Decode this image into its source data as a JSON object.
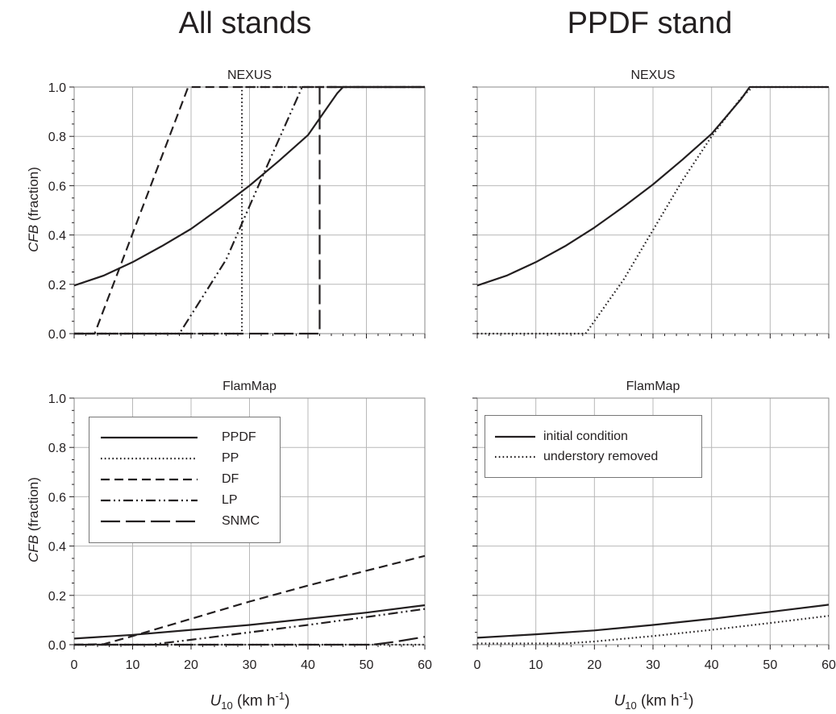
{
  "column_titles": {
    "left": "All stands",
    "right": "PPDF stand"
  },
  "y_axis_label": {
    "italic": "CFB",
    "rest": " (fraction)"
  },
  "x_axis_label": {
    "main": "U",
    "sub": "10",
    "unit_open": " (km h",
    "sup": "-1",
    "unit_close": ")"
  },
  "chart_data": [
    {
      "type": "line",
      "panel": "top-left",
      "title": "NEXUS",
      "xlabel": "",
      "ylabel": "CFB (fraction)",
      "xlim": [
        0,
        60
      ],
      "ylim": [
        0,
        1
      ],
      "xticks": [
        0,
        10,
        20,
        30,
        40,
        50,
        60
      ],
      "yticks": [
        "0.0",
        "0.2",
        "0.4",
        "0.6",
        "0.8",
        "1.0"
      ],
      "grid": true,
      "series": [
        {
          "name": "PPDF",
          "style": "solid",
          "x": [
            0,
            5,
            10,
            15,
            20,
            25,
            30,
            35,
            40,
            45,
            46,
            60
          ],
          "y": [
            0.195,
            0.235,
            0.29,
            0.355,
            0.425,
            0.51,
            0.6,
            0.7,
            0.805,
            0.975,
            1.0,
            1.0
          ]
        },
        {
          "name": "PP",
          "style": "dotted",
          "x": [
            0,
            28.7,
            28.7,
            60
          ],
          "y": [
            0,
            0,
            1.0,
            1.0
          ]
        },
        {
          "name": "DF",
          "style": "dashed",
          "x": [
            0,
            3.5,
            19.5,
            60
          ],
          "y": [
            0,
            0,
            1.0,
            1.0
          ]
        },
        {
          "name": "LP",
          "style": "dash-dot-dot",
          "x": [
            0,
            18,
            26,
            33,
            39,
            60
          ],
          "y": [
            0,
            0,
            0.3,
            0.68,
            1.0,
            1.0
          ]
        },
        {
          "name": "SNMC",
          "style": "long-dash",
          "x": [
            0,
            42,
            42,
            60
          ],
          "y": [
            0,
            0,
            1.0,
            1.0
          ]
        }
      ]
    },
    {
      "type": "line",
      "panel": "top-right",
      "title": "NEXUS",
      "xlim": [
        0,
        60
      ],
      "ylim": [
        0,
        1
      ],
      "xticks": [
        0,
        10,
        20,
        30,
        40,
        50,
        60
      ],
      "grid": true,
      "series": [
        {
          "name": "initial condition",
          "style": "solid",
          "x": [
            0,
            5,
            10,
            15,
            20,
            25,
            30,
            35,
            40,
            45,
            46.5,
            60
          ],
          "y": [
            0.195,
            0.235,
            0.29,
            0.355,
            0.43,
            0.515,
            0.605,
            0.705,
            0.81,
            0.95,
            1.0,
            1.0
          ]
        },
        {
          "name": "understory removed",
          "style": "dotted",
          "x": [
            0,
            18.5,
            25,
            30,
            35,
            40,
            45,
            47,
            60
          ],
          "y": [
            0,
            0,
            0.22,
            0.42,
            0.62,
            0.8,
            0.955,
            1.0,
            1.0
          ]
        }
      ]
    },
    {
      "type": "line",
      "panel": "bottom-left",
      "title": "FlamMap",
      "xlabel": "U10 (km h-1)",
      "ylabel": "CFB (fraction)",
      "xlim": [
        0,
        60
      ],
      "ylim": [
        0,
        1
      ],
      "xticks": [
        "0",
        "10",
        "20",
        "30",
        "40",
        "50",
        "60"
      ],
      "yticks": [
        "0.0",
        "0.2",
        "0.4",
        "0.6",
        "0.8",
        "1.0"
      ],
      "grid": true,
      "legend": "upper-left",
      "series": [
        {
          "name": "PPDF",
          "style": "solid",
          "x": [
            0,
            10,
            20,
            30,
            40,
            50,
            60
          ],
          "y": [
            0.025,
            0.04,
            0.06,
            0.08,
            0.105,
            0.13,
            0.16
          ]
        },
        {
          "name": "PP",
          "style": "dotted",
          "x": [
            0,
            60
          ],
          "y": [
            0,
            0
          ]
        },
        {
          "name": "DF",
          "style": "dashed",
          "x": [
            0,
            5,
            10,
            20,
            30,
            40,
            50,
            60
          ],
          "y": [
            0,
            0.002,
            0.035,
            0.105,
            0.175,
            0.24,
            0.3,
            0.36
          ]
        },
        {
          "name": "LP",
          "style": "dash-dot-dot",
          "x": [
            0,
            13,
            20,
            30,
            40,
            50,
            60
          ],
          "y": [
            0,
            0,
            0.02,
            0.05,
            0.08,
            0.112,
            0.145
          ]
        },
        {
          "name": "SNMC",
          "style": "long-dash",
          "x": [
            0,
            51,
            55,
            60
          ],
          "y": [
            0,
            0,
            0.012,
            0.032
          ]
        }
      ]
    },
    {
      "type": "line",
      "panel": "bottom-right",
      "title": "FlamMap",
      "xlabel": "U10 (km h-1)",
      "xlim": [
        0,
        60
      ],
      "ylim": [
        0,
        1
      ],
      "xticks": [
        "0",
        "10",
        "20",
        "30",
        "40",
        "50",
        "60"
      ],
      "grid": true,
      "legend": "upper-left",
      "series": [
        {
          "name": "initial condition",
          "style": "solid",
          "x": [
            0,
            10,
            20,
            30,
            40,
            50,
            60
          ],
          "y": [
            0.028,
            0.042,
            0.058,
            0.08,
            0.105,
            0.133,
            0.162
          ]
        },
        {
          "name": "understory removed",
          "style": "dotted",
          "x": [
            0,
            15,
            20,
            30,
            40,
            50,
            60
          ],
          "y": [
            0.005,
            0.005,
            0.013,
            0.035,
            0.06,
            0.088,
            0.117
          ]
        }
      ]
    }
  ]
}
